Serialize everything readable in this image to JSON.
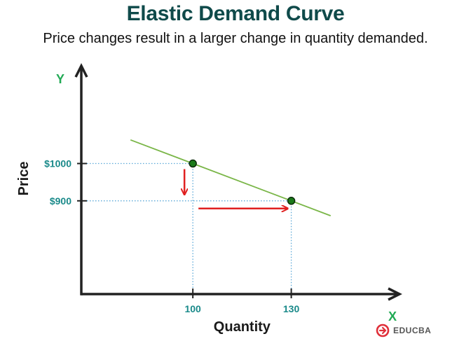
{
  "chart_data": {
    "type": "line",
    "title": "Elastic Demand Curve",
    "subtitle": "Price changes result in a larger change in quantity demanded.",
    "xlabel": "Quantity",
    "ylabel": "Price",
    "x_axis_letter": "X",
    "y_axis_letter": "Y",
    "x_ticks": [
      {
        "value": 100,
        "label": "100"
      },
      {
        "value": 130,
        "label": "130"
      }
    ],
    "y_ticks": [
      {
        "value": 1000,
        "label": "$1000"
      },
      {
        "value": 900,
        "label": "$900"
      }
    ],
    "points": [
      {
        "x": 100,
        "y": 1000
      },
      {
        "x": 130,
        "y": 900
      }
    ],
    "demand_line": {
      "x_start": 81,
      "x_end": 142
    },
    "xlim": [
      66,
      160
    ],
    "ylim": [
      650,
      1230
    ],
    "grid": false,
    "colors": {
      "demand_line": "#7ab648",
      "point_fill": "#1a7a1a",
      "point_stroke": "#0a2a0a",
      "guide_lines": "#5ba8d8",
      "arrows": "#e02020",
      "axis": "#222222",
      "tick_labels": "#1a8a8a",
      "axis_letters": "#22aa55",
      "title": "#0f4a4a"
    }
  },
  "brand": {
    "name": "EDUCBA",
    "icon": "educba-logo-icon",
    "color": "#e0303a"
  }
}
